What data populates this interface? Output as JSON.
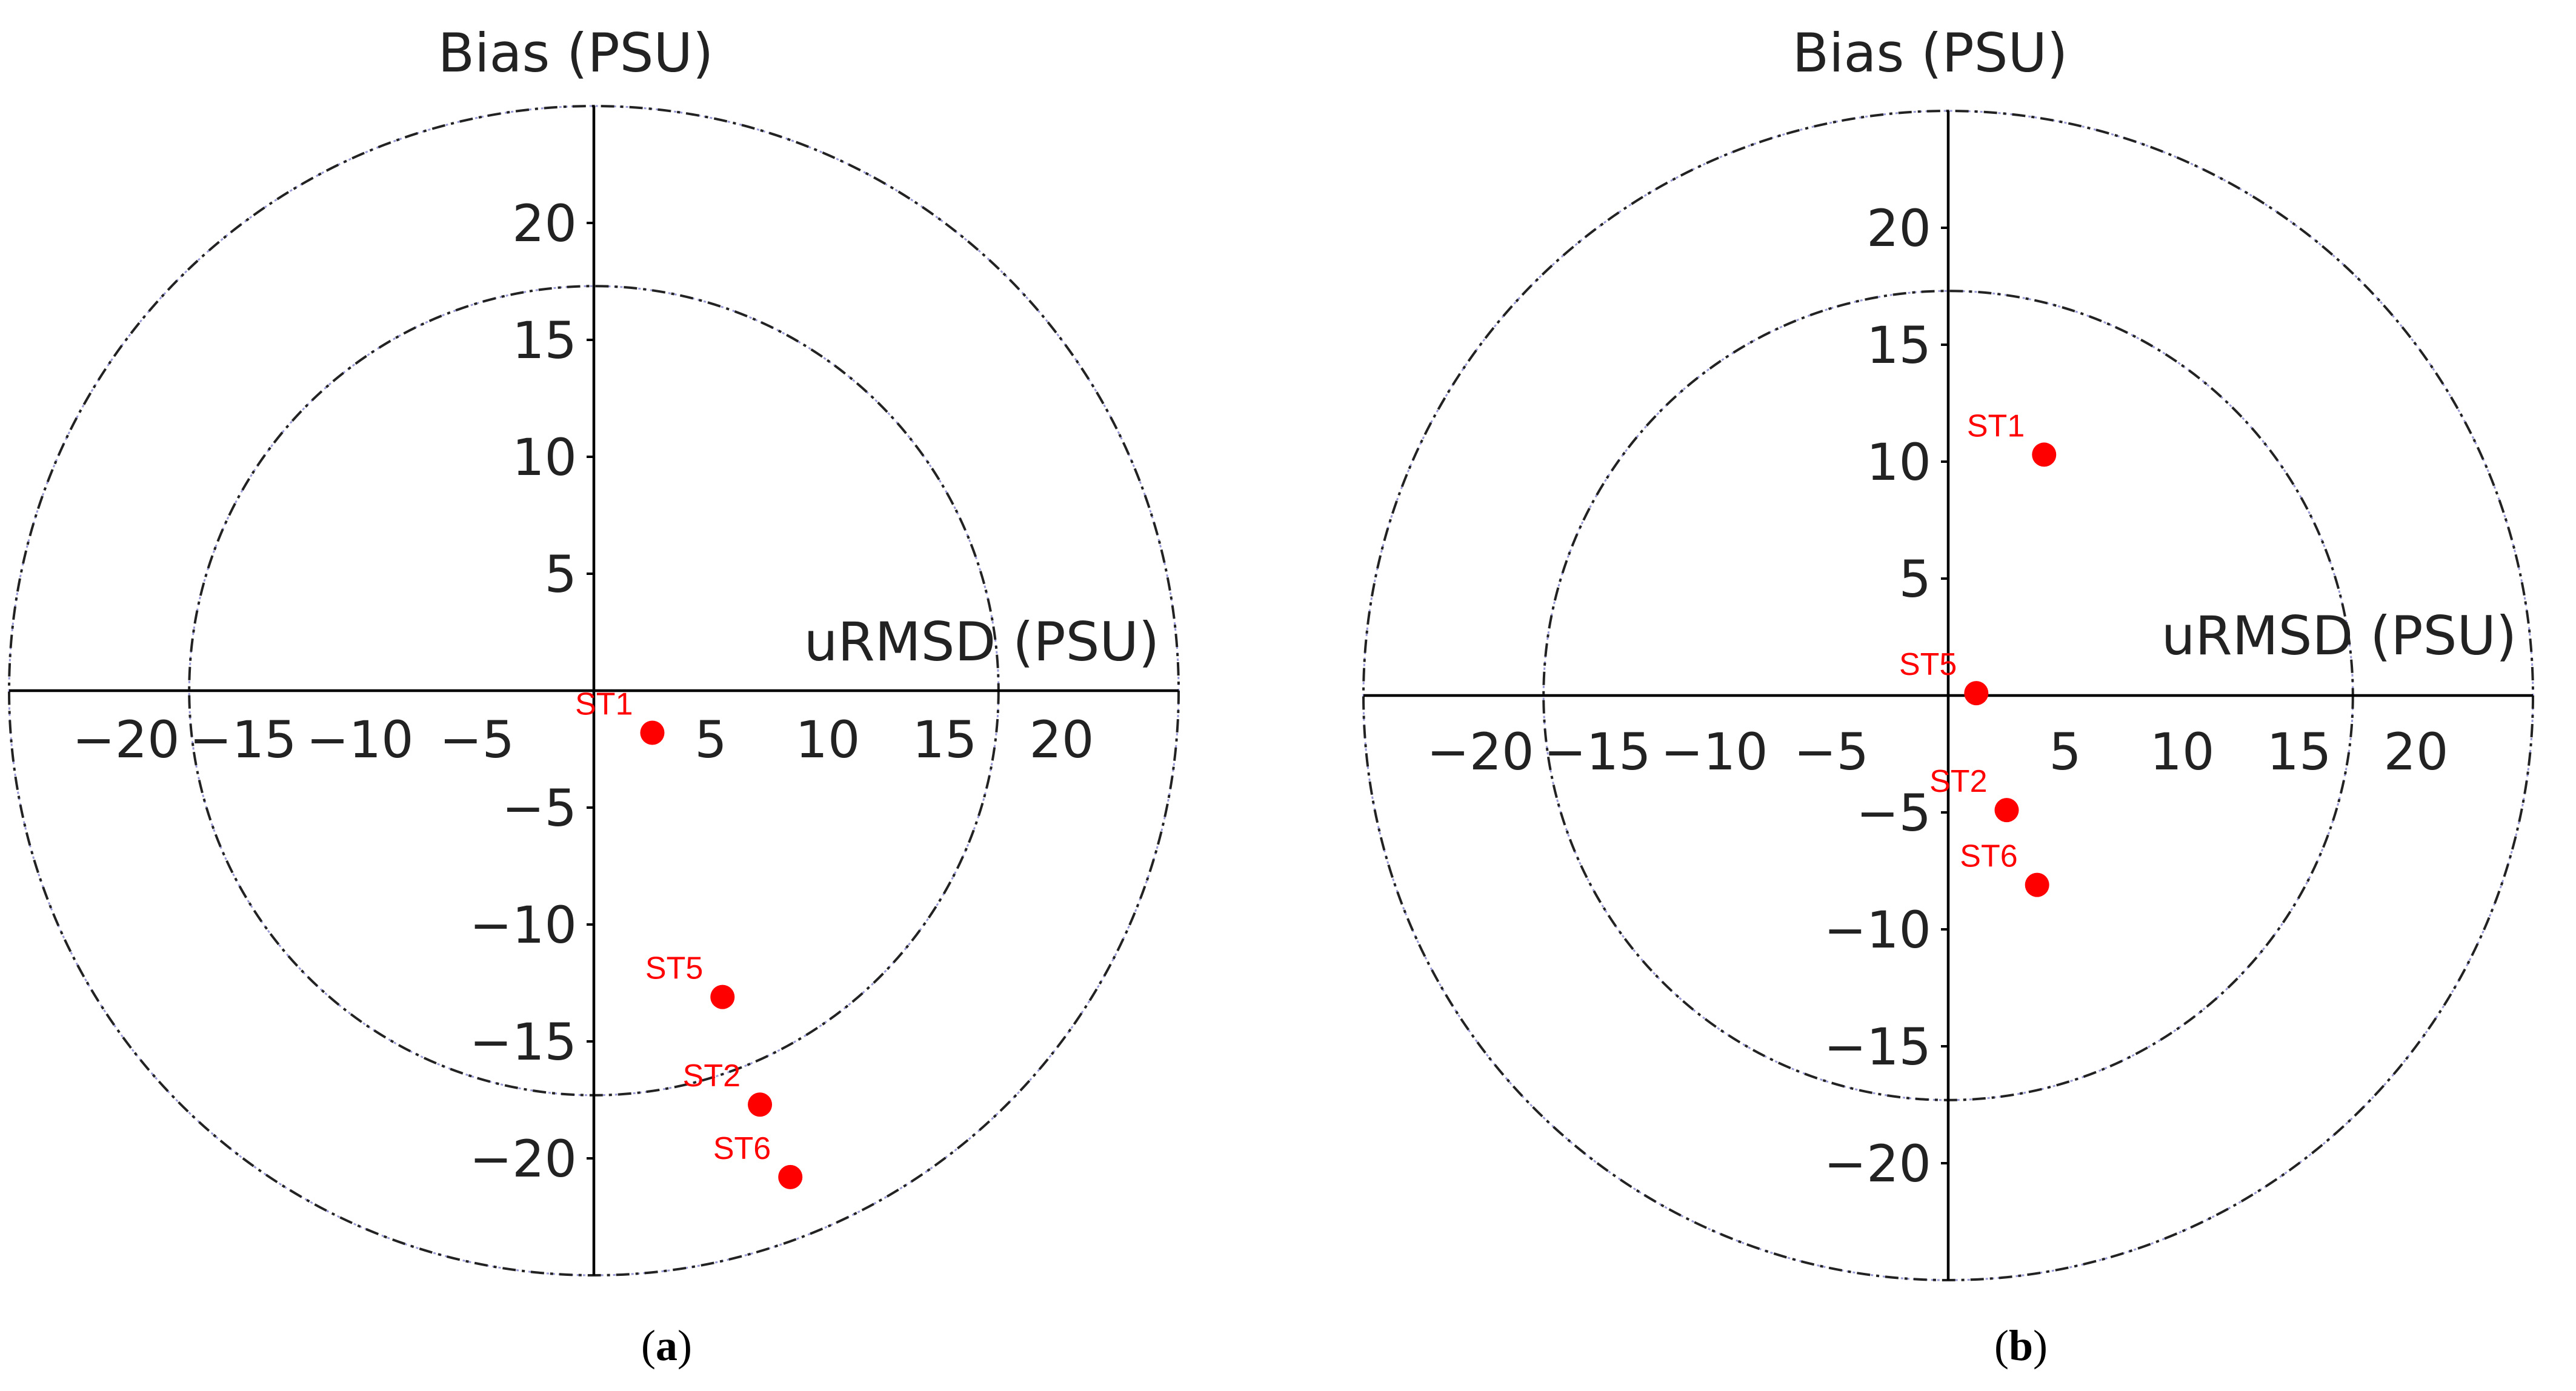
{
  "chart_data": [
    {
      "panel_label": "a",
      "type": "scatter",
      "xlabel": "uRMSD (PSU)",
      "ylabel": "Bias (PSU)",
      "x_ticks": [
        "−20",
        "−15",
        "−10",
        "−5",
        "5",
        "10",
        "15",
        "20"
      ],
      "y_ticks": [
        "20",
        "15",
        "10",
        "5",
        "−5",
        "−10",
        "−15",
        "−20"
      ],
      "circles": [
        17.3,
        25
      ],
      "xlim": [
        -25,
        25
      ],
      "ylim": [
        -25,
        25
      ],
      "point_color": "#ff0000",
      "points": [
        {
          "label": "ST1",
          "x": 2.5,
          "y": -1.8
        },
        {
          "label": "ST5",
          "x": 5.5,
          "y": -13.1
        },
        {
          "label": "ST2",
          "x": 7.1,
          "y": -17.7
        },
        {
          "label": "ST6",
          "x": 8.4,
          "y": -20.8
        }
      ]
    },
    {
      "panel_label": "b",
      "type": "scatter",
      "xlabel": "uRMSD (PSU)",
      "ylabel": "Bias (PSU)",
      "x_ticks": [
        "−20",
        "−15",
        "−10",
        "−5",
        "5",
        "10",
        "15",
        "20"
      ],
      "y_ticks": [
        "20",
        "15",
        "10",
        "5",
        "−5",
        "−10",
        "−15",
        "−20"
      ],
      "circles": [
        17.3,
        25
      ],
      "xlim": [
        -25,
        25
      ],
      "ylim": [
        -25,
        25
      ],
      "point_color": "#ff0000",
      "points": [
        {
          "label": "ST1",
          "x": 4.1,
          "y": 10.3
        },
        {
          "label": "ST5",
          "x": 1.2,
          "y": 0.1
        },
        {
          "label": "ST2",
          "x": 2.5,
          "y": -4.9
        },
        {
          "label": "ST6",
          "x": 3.8,
          "y": -8.1
        }
      ]
    }
  ]
}
